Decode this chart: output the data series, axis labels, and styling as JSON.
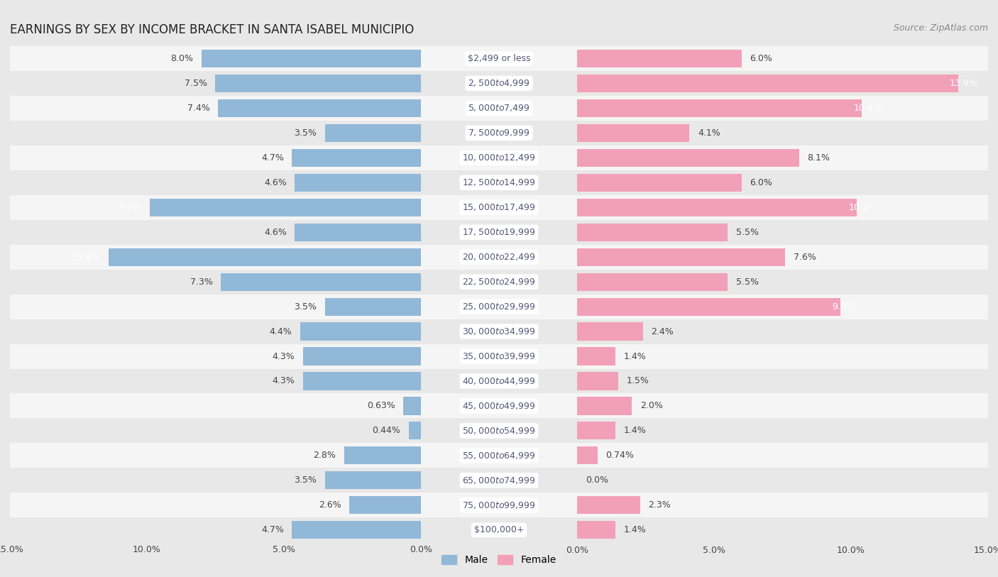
{
  "title": "EARNINGS BY SEX BY INCOME BRACKET IN SANTA ISABEL MUNICIPIO",
  "source": "Source: ZipAtlas.com",
  "categories": [
    "$2,499 or less",
    "$2,500 to $4,999",
    "$5,000 to $7,499",
    "$7,500 to $9,999",
    "$10,000 to $12,499",
    "$12,500 to $14,999",
    "$15,000 to $17,499",
    "$17,500 to $19,999",
    "$20,000 to $22,499",
    "$22,500 to $24,999",
    "$25,000 to $29,999",
    "$30,000 to $34,999",
    "$35,000 to $39,999",
    "$40,000 to $44,999",
    "$45,000 to $49,999",
    "$50,000 to $54,999",
    "$55,000 to $64,999",
    "$65,000 to $74,999",
    "$75,000 to $99,999",
    "$100,000+"
  ],
  "male_values": [
    8.0,
    7.5,
    7.4,
    3.5,
    4.7,
    4.6,
    9.9,
    4.6,
    11.4,
    7.3,
    3.5,
    4.4,
    4.3,
    4.3,
    0.63,
    0.44,
    2.8,
    3.5,
    2.6,
    4.7
  ],
  "female_values": [
    6.0,
    13.9,
    10.4,
    4.1,
    8.1,
    6.0,
    10.2,
    5.5,
    7.6,
    5.5,
    9.6,
    2.4,
    1.4,
    1.5,
    2.0,
    1.4,
    0.74,
    0.0,
    2.3,
    1.4
  ],
  "male_color": "#92b8d8",
  "female_color": "#f2a0b8",
  "male_label": "Male",
  "female_label": "Female",
  "xlim": 15.0,
  "row_color_odd": "#e8e8e8",
  "row_color_even": "#f5f5f5",
  "background_color": "#e8e8e8",
  "label_pill_color": "#ffffff",
  "title_fontsize": 12,
  "source_fontsize": 9,
  "bar_label_fontsize": 9,
  "cat_label_fontsize": 9,
  "axis_tick_fontsize": 9
}
